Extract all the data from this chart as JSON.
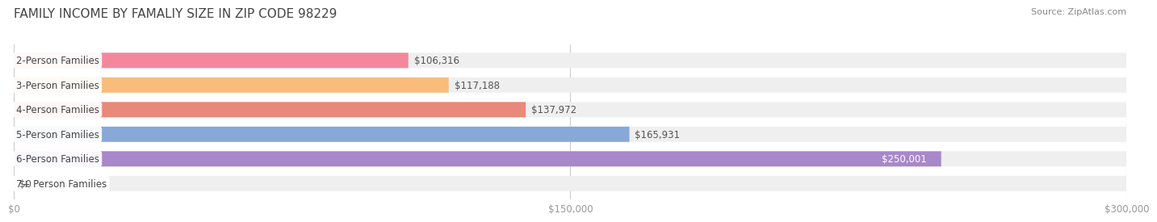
{
  "title": "FAMILY INCOME BY FAMALIY SIZE IN ZIP CODE 98229",
  "source": "Source: ZipAtlas.com",
  "categories": [
    "2-Person Families",
    "3-Person Families",
    "4-Person Families",
    "5-Person Families",
    "6-Person Families",
    "7+ Person Families"
  ],
  "values": [
    106316,
    117188,
    137972,
    165931,
    250001,
    0
  ],
  "bar_colors": [
    "#F4879C",
    "#F9BC7A",
    "#E8897A",
    "#88A8D8",
    "#A888C8",
    "#7ECECE"
  ],
  "bar_bg_color": "#EFEFEF",
  "label_bg_color": "#FFFFFF",
  "value_labels": [
    "$106,316",
    "$117,188",
    "$137,972",
    "$165,931",
    "$250,001",
    "$0"
  ],
  "xlim": [
    0,
    300000
  ],
  "xticks": [
    0,
    150000,
    300000
  ],
  "xtick_labels": [
    "$0",
    "$150,000",
    "$300,000"
  ],
  "background_color": "#FFFFFF",
  "title_fontsize": 11,
  "bar_height": 0.62,
  "bar_label_fontsize": 8.5,
  "value_fontsize": 8.5,
  "axis_fontsize": 8.5,
  "source_fontsize": 8
}
